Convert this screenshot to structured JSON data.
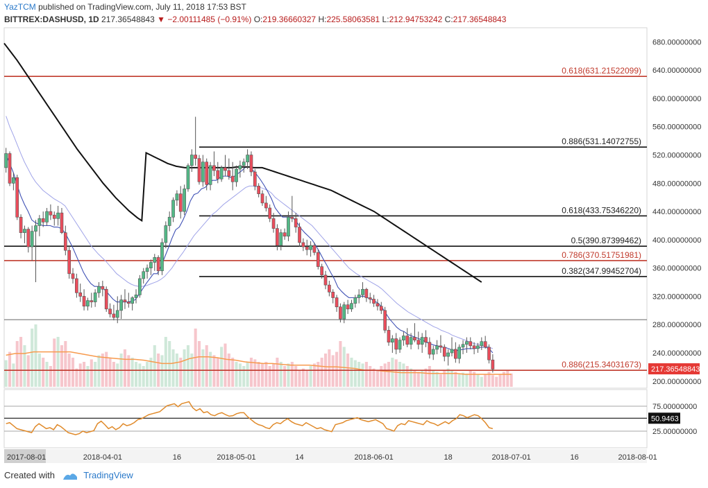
{
  "header": {
    "author": "YazTCM",
    "published_text": "published on TradingView.com, July 11, 2018 17:53 BST"
  },
  "symbol": {
    "name": "BITTREX:DASHUSD, 1D",
    "last": "217.36548843",
    "change": "−2.00111485 (−0.91%)",
    "o_label": "O:",
    "o": "219.36660327",
    "h_label": "H:",
    "h": "225.58063581",
    "l_label": "L:",
    "l": "212.94753242",
    "c_label": "C:",
    "c": "217.36548843"
  },
  "footer": {
    "created_with": "Created with",
    "brand": "TradingView"
  },
  "colors": {
    "up": "#53b987",
    "down": "#eb4d5c",
    "candle_border": "#555555",
    "vol_up": "#cfe8d9",
    "vol_down": "#f6c6cc",
    "vol_ma": "#f79a4d",
    "ema_fast": "#3f51b5",
    "ema_slow": "#9fa3e8",
    "sma": "#111111",
    "fib_red": "#c0392b",
    "fib_black": "#111111",
    "rsi": "#e08a2a"
  },
  "chart_data": {
    "type": "candlestick",
    "ylim": [
      190,
      700
    ],
    "y_ticks": [
      "680.00000000",
      "640.00000000",
      "600.00000000",
      "560.00000000",
      "520.00000000",
      "480.00000000",
      "440.00000000",
      "400.00000000",
      "360.00000000",
      "320.00000000",
      "280.00000000",
      "240.00000000",
      "200.00000000"
    ],
    "y_tick_values": [
      680,
      640,
      600,
      560,
      520,
      480,
      440,
      400,
      360,
      320,
      280,
      240,
      200
    ],
    "x_ticks": [
      "2017-08-01",
      "2018-04-01",
      "16",
      "2018-05-01",
      "14",
      "2018-06-01",
      "18",
      "2018-07-01",
      "16",
      "2018-08-01"
    ],
    "x_tick_bars": [
      0,
      26,
      46,
      62,
      79,
      99,
      119,
      136,
      153,
      170
    ],
    "bar_count": 173,
    "candles": [
      [
        502,
        530,
        495,
        522
      ],
      [
        522,
        525,
        476,
        480
      ],
      [
        480,
        495,
        470,
        488
      ],
      [
        488,
        492,
        428,
        432
      ],
      [
        432,
        436,
        402,
        410
      ],
      [
        410,
        420,
        395,
        415
      ],
      [
        415,
        418,
        382,
        390
      ],
      [
        390,
        420,
        370,
        412
      ],
      [
        412,
        428,
        340,
        420
      ],
      [
        420,
        435,
        405,
        430
      ],
      [
        430,
        440,
        418,
        425
      ],
      [
        425,
        445,
        420,
        440
      ],
      [
        440,
        450,
        428,
        435
      ],
      [
        435,
        440,
        420,
        430
      ],
      [
        430,
        448,
        420,
        438
      ],
      [
        438,
        445,
        408,
        410
      ],
      [
        410,
        420,
        378,
        385
      ],
      [
        385,
        392,
        345,
        352
      ],
      [
        352,
        360,
        338,
        345
      ],
      [
        345,
        352,
        318,
        325
      ],
      [
        325,
        338,
        312,
        320
      ],
      [
        320,
        330,
        300,
        306
      ],
      [
        306,
        318,
        300,
        314
      ],
      [
        314,
        325,
        304,
        312
      ],
      [
        312,
        330,
        305,
        325
      ],
      [
        325,
        340,
        318,
        334
      ],
      [
        334,
        342,
        320,
        330
      ],
      [
        330,
        334,
        298,
        302
      ],
      [
        302,
        310,
        290,
        295
      ],
      [
        295,
        308,
        286,
        290
      ],
      [
        290,
        320,
        282,
        300
      ],
      [
        300,
        322,
        288,
        315
      ],
      [
        315,
        330,
        302,
        312
      ],
      [
        312,
        325,
        304,
        310
      ],
      [
        310,
        320,
        300,
        318
      ],
      [
        318,
        330,
        310,
        322
      ],
      [
        322,
        350,
        318,
        345
      ],
      [
        345,
        360,
        338,
        355
      ],
      [
        355,
        365,
        345,
        360
      ],
      [
        360,
        372,
        350,
        368
      ],
      [
        368,
        380,
        356,
        375
      ],
      [
        375,
        378,
        350,
        356
      ],
      [
        356,
        402,
        350,
        396
      ],
      [
        396,
        426,
        388,
        420
      ],
      [
        420,
        440,
        412,
        432
      ],
      [
        432,
        460,
        425,
        456
      ],
      [
        456,
        470,
        448,
        465
      ],
      [
        465,
        476,
        430,
        440
      ],
      [
        440,
        478,
        435,
        472
      ],
      [
        472,
        508,
        468,
        505
      ],
      [
        505,
        528,
        496,
        520
      ],
      [
        520,
        574,
        505,
        515
      ],
      [
        515,
        520,
        478,
        482
      ],
      [
        482,
        520,
        475,
        510
      ],
      [
        510,
        515,
        470,
        478
      ],
      [
        478,
        510,
        470,
        505
      ],
      [
        505,
        525,
        490,
        498
      ],
      [
        498,
        510,
        480,
        486
      ],
      [
        486,
        505,
        482,
        502
      ],
      [
        502,
        520,
        490,
        498
      ],
      [
        498,
        515,
        485,
        490
      ],
      [
        490,
        510,
        470,
        482
      ],
      [
        482,
        505,
        475,
        500
      ],
      [
        500,
        512,
        488,
        505
      ],
      [
        505,
        515,
        495,
        510
      ],
      [
        510,
        528,
        500,
        520
      ],
      [
        520,
        525,
        490,
        496
      ],
      [
        496,
        500,
        470,
        476
      ],
      [
        476,
        480,
        460,
        465
      ],
      [
        465,
        470,
        448,
        452
      ],
      [
        452,
        462,
        440,
        445
      ],
      [
        445,
        450,
        425,
        430
      ],
      [
        430,
        438,
        410,
        416
      ],
      [
        416,
        422,
        385,
        392
      ],
      [
        392,
        415,
        385,
        410
      ],
      [
        410,
        416,
        400,
        405
      ],
      [
        405,
        440,
        398,
        432
      ],
      [
        432,
        462,
        425,
        430
      ],
      [
        430,
        438,
        410,
        418
      ],
      [
        418,
        424,
        390,
        396
      ],
      [
        396,
        402,
        384,
        390
      ],
      [
        390,
        400,
        378,
        386
      ],
      [
        386,
        398,
        376,
        392
      ],
      [
        392,
        396,
        378,
        382
      ],
      [
        382,
        386,
        358,
        362
      ],
      [
        362,
        366,
        345,
        350
      ],
      [
        350,
        356,
        330,
        336
      ],
      [
        336,
        342,
        320,
        326
      ],
      [
        326,
        330,
        310,
        318
      ],
      [
        318,
        322,
        298,
        305
      ],
      [
        305,
        310,
        283,
        288
      ],
      [
        288,
        312,
        282,
        308
      ],
      [
        308,
        315,
        295,
        302
      ],
      [
        302,
        315,
        298,
        310
      ],
      [
        310,
        322,
        304,
        318
      ],
      [
        318,
        330,
        310,
        322
      ],
      [
        322,
        340,
        318,
        330
      ],
      [
        330,
        332,
        312,
        318
      ],
      [
        318,
        325,
        310,
        316
      ],
      [
        316,
        322,
        305,
        310
      ],
      [
        310,
        316,
        300,
        306
      ],
      [
        306,
        312,
        295,
        300
      ],
      [
        300,
        305,
        268,
        272
      ],
      [
        272,
        278,
        250,
        255
      ],
      [
        255,
        265,
        240,
        260
      ],
      [
        260,
        268,
        238,
        245
      ],
      [
        245,
        262,
        240,
        258
      ],
      [
        258,
        270,
        250,
        264
      ],
      [
        264,
        275,
        248,
        252
      ],
      [
        252,
        268,
        245,
        262
      ],
      [
        262,
        282,
        255,
        258
      ],
      [
        258,
        270,
        245,
        252
      ],
      [
        252,
        268,
        240,
        262
      ],
      [
        262,
        272,
        248,
        255
      ],
      [
        255,
        262,
        232,
        238
      ],
      [
        238,
        250,
        230,
        245
      ],
      [
        245,
        258,
        238,
        250
      ],
      [
        250,
        265,
        240,
        248
      ],
      [
        248,
        252,
        228,
        235
      ],
      [
        235,
        245,
        222,
        240
      ],
      [
        240,
        262,
        235,
        245
      ],
      [
        245,
        255,
        226,
        232
      ],
      [
        232,
        252,
        225,
        248
      ],
      [
        248,
        258,
        238,
        252
      ],
      [
        252,
        262,
        240,
        256
      ],
      [
        256,
        262,
        245,
        250
      ],
      [
        250,
        255,
        238,
        246
      ],
      [
        246,
        254,
        240,
        250
      ],
      [
        250,
        262,
        244,
        256
      ],
      [
        256,
        264,
        246,
        248
      ],
      [
        248,
        252,
        225,
        230
      ],
      [
        230,
        238,
        212,
        217
      ]
    ],
    "volumes": [
      0.32,
      0.42,
      0.28,
      0.55,
      0.6,
      0.5,
      0.38,
      0.7,
      0.75,
      0.4,
      0.35,
      0.3,
      0.25,
      0.58,
      0.6,
      0.5,
      0.55,
      0.4,
      0.35,
      0.22,
      0.28,
      0.3,
      0.25,
      0.33,
      0.3,
      0.38,
      0.4,
      0.42,
      0.35,
      0.3,
      0.28,
      0.4,
      0.45,
      0.38,
      0.35,
      0.3,
      0.28,
      0.25,
      0.3,
      0.35,
      0.5,
      0.4,
      0.38,
      0.6,
      0.55,
      0.45,
      0.4,
      0.35,
      0.45,
      0.5,
      0.4,
      0.7,
      0.55,
      0.45,
      0.5,
      0.42,
      0.38,
      0.35,
      0.48,
      0.52,
      0.4,
      0.35,
      0.3,
      0.28,
      0.25,
      0.3,
      0.35,
      0.33,
      0.3,
      0.28,
      0.3,
      0.25,
      0.28,
      0.35,
      0.3,
      0.25,
      0.28,
      0.3,
      0.25,
      0.2,
      0.22,
      0.2,
      0.25,
      0.28,
      0.3,
      0.35,
      0.4,
      0.45,
      0.38,
      0.42,
      0.55,
      0.48,
      0.4,
      0.35,
      0.32,
      0.3,
      0.28,
      0.3,
      0.25,
      0.22,
      0.2,
      0.25,
      0.28,
      0.3,
      0.35,
      0.33,
      0.3,
      0.28,
      0.25,
      0.22,
      0.2,
      0.18,
      0.2,
      0.22,
      0.25,
      0.2,
      0.18,
      0.15,
      0.2,
      0.22,
      0.2,
      0.18,
      0.15,
      0.17,
      0.16,
      0.2,
      0.18,
      0.15,
      0.12,
      0.15,
      0.18,
      0.14,
      0.12,
      0.15,
      0.18,
      0.2,
      0.16
    ],
    "ema_fast": [
      520,
      508,
      495,
      478,
      462,
      450,
      440,
      428,
      424,
      422,
      420,
      420,
      420,
      418,
      418,
      416,
      410,
      400,
      390,
      378,
      366,
      354,
      345,
      338,
      334,
      334,
      333,
      328,
      322,
      316,
      312,
      312,
      312,
      312,
      313,
      315,
      322,
      330,
      338,
      345,
      352,
      352,
      362,
      375,
      388,
      402,
      414,
      418,
      428,
      440,
      455,
      464,
      466,
      472,
      474,
      480,
      484,
      484,
      488,
      490,
      490,
      488,
      490,
      494,
      498,
      503,
      503,
      498,
      492,
      485,
      477,
      468,
      458,
      445,
      438,
      432,
      432,
      432,
      430,
      424,
      416,
      410,
      405,
      400,
      392,
      383,
      373,
      364,
      354,
      345,
      333,
      327,
      322,
      318,
      318,
      318,
      320,
      320,
      318,
      316,
      313,
      310,
      304,
      296,
      288,
      282,
      276,
      272,
      270,
      266,
      264,
      262,
      260,
      258,
      255,
      253,
      251,
      250,
      248,
      248,
      246,
      244,
      243,
      244,
      245,
      246,
      246,
      246,
      247,
      248,
      248,
      246,
      240
    ],
    "ema_slow": [
      575,
      560,
      548,
      535,
      522,
      510,
      500,
      490,
      482,
      476,
      470,
      466,
      462,
      458,
      455,
      452,
      448,
      440,
      432,
      424,
      416,
      408,
      400,
      392,
      386,
      380,
      375,
      370,
      364,
      358,
      352,
      348,
      344,
      340,
      337,
      335,
      334,
      334,
      335,
      337,
      339,
      341,
      344,
      348,
      354,
      360,
      368,
      375,
      382,
      390,
      398,
      406,
      412,
      418,
      424,
      430,
      436,
      440,
      445,
      450,
      454,
      458,
      462,
      466,
      470,
      474,
      476,
      476,
      475,
      474,
      472,
      470,
      466,
      460,
      456,
      452,
      448,
      444,
      440,
      436,
      432,
      428,
      424,
      420,
      414,
      408,
      402,
      396,
      390,
      384,
      378,
      372,
      366,
      360,
      356,
      352,
      349,
      346,
      343,
      340,
      337,
      334,
      330,
      325,
      320,
      315,
      310,
      306,
      302,
      298,
      295,
      292,
      289,
      286,
      283,
      280,
      277,
      275,
      272,
      270,
      268,
      265,
      263,
      261,
      259,
      257,
      255,
      253,
      252,
      251,
      250,
      248,
      246
    ],
    "sma": [
      678,
      670,
      662,
      654,
      645,
      636,
      627,
      618,
      609,
      600,
      591,
      582,
      573,
      564,
      555,
      546,
      537,
      528,
      520,
      512,
      504,
      496,
      488,
      480,
      473,
      466,
      459,
      453,
      447,
      441,
      436,
      431,
      427,
      523,
      520,
      517,
      514,
      511,
      508,
      506,
      504,
      503,
      502,
      502,
      502,
      502,
      502,
      502,
      502,
      502,
      502,
      502,
      502,
      502,
      503,
      503,
      503,
      503,
      502,
      502,
      502,
      500,
      498,
      496,
      494,
      492,
      490,
      488,
      486,
      484,
      482,
      480,
      478,
      476,
      474,
      472,
      470,
      467,
      464,
      461,
      458,
      455,
      452,
      449,
      446,
      443,
      440,
      436,
      432,
      428,
      424,
      420,
      416,
      412,
      408,
      404,
      400,
      396,
      392,
      388,
      384,
      380,
      376,
      372,
      368,
      364,
      360,
      356,
      352,
      348,
      344,
      340
    ],
    "vol_ma": [
      0.38,
      0.4,
      0.4,
      0.42,
      0.42,
      0.42,
      0.42,
      0.42,
      0.4,
      0.38,
      0.36,
      0.35,
      0.34,
      0.33,
      0.33,
      0.32,
      0.3,
      0.28,
      0.28,
      0.3,
      0.34,
      0.36,
      0.36,
      0.35,
      0.33,
      0.32,
      0.3,
      0.29,
      0.28,
      0.28,
      0.27,
      0.26,
      0.26,
      0.26,
      0.25,
      0.24,
      0.24,
      0.23,
      0.22,
      0.2,
      0.2,
      0.19,
      0.18,
      0.17,
      0.17,
      0.17,
      0.16,
      0.16,
      0.16,
      0.16,
      0.15,
      0.15,
      0.15,
      0.15,
      0.15,
      0.15
    ],
    "rsi": [
      40,
      42,
      36,
      30,
      28,
      26,
      24,
      22,
      34,
      40,
      35,
      30,
      32,
      28,
      38,
      34,
      28,
      22,
      20,
      18,
      20,
      25,
      22,
      24,
      26,
      40,
      45,
      38,
      30,
      34,
      28,
      32,
      40,
      36,
      38,
      42,
      48,
      50,
      54,
      58,
      60,
      62,
      64,
      70,
      76,
      78,
      80,
      74,
      80,
      82,
      84,
      72,
      66,
      70,
      62,
      64,
      58,
      56,
      60,
      62,
      58,
      55,
      56,
      60,
      62,
      62,
      54,
      48,
      42,
      38,
      36,
      32,
      30,
      38,
      42,
      40,
      46,
      50,
      44,
      40,
      38,
      36,
      42,
      38,
      34,
      30,
      32,
      28,
      26,
      24,
      38,
      40,
      42,
      46,
      48,
      50,
      52,
      48,
      46,
      44,
      46,
      48,
      44,
      40,
      30,
      28,
      25,
      36,
      40,
      38,
      46,
      44,
      42,
      40,
      38,
      46,
      42,
      40,
      36,
      40,
      44,
      40,
      46,
      50,
      58,
      56,
      52,
      55,
      58,
      56,
      50,
      42,
      32,
      30
    ],
    "h_levels": [
      {
        "label": "0.618(631.21522099)",
        "value": 631.2,
        "color": "fib_red",
        "from_bar": 0
      },
      {
        "label": "0.886(531.14072755)",
        "value": 531.1,
        "color": "fib_black",
        "from_bar": 52
      },
      {
        "label": "0.618(433.75346220)",
        "value": 433.8,
        "color": "fib_black",
        "from_bar": 52
      },
      {
        "label": "0.5(390.87399462)",
        "value": 390.9,
        "color": "fib_black",
        "from_bar": 0
      },
      {
        "label": "0.786(370.51751981)",
        "value": 370.5,
        "color": "fib_red",
        "from_bar": 0
      },
      {
        "label": "0.382(347.99452704)",
        "value": 348.0,
        "color": "fib_black",
        "from_bar": 52
      },
      {
        "label": "0.886(215.34031673)",
        "value": 215.3,
        "color": "fib_red",
        "from_bar": 0
      }
    ],
    "extra_line": 287,
    "last_price_label": "217.36548843",
    "rsi_ticks": [
      "75.00000000",
      "25.00000000"
    ],
    "rsi_value_label": "50.9463"
  }
}
